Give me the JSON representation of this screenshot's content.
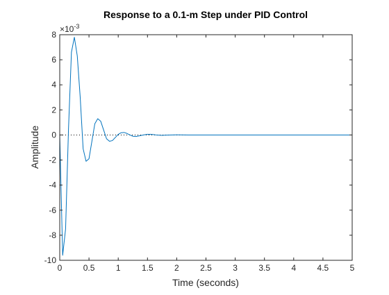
{
  "chart_data": {
    "type": "line",
    "title": "Response to a 0.1-m Step under PID Control",
    "xlabel": "Time (seconds)",
    "ylabel": "Amplitude",
    "y_multiplier_label": "×10",
    "y_multiplier_exponent": "-3",
    "xlim": [
      0,
      5
    ],
    "ylim": [
      -10,
      8
    ],
    "x_ticks": [
      0,
      0.5,
      1,
      1.5,
      2,
      2.5,
      3,
      3.5,
      4,
      4.5,
      5
    ],
    "x_tick_labels": [
      "0",
      "0.5",
      "1",
      "1.5",
      "2",
      "2.5",
      "3",
      "3.5",
      "4",
      "4.5",
      "5"
    ],
    "y_ticks": [
      -10,
      -8,
      -6,
      -4,
      -2,
      0,
      2,
      4,
      6,
      8
    ],
    "y_tick_labels": [
      "-10",
      "-8",
      "-6",
      "-4",
      "-2",
      "0",
      "2",
      "4",
      "6",
      "8"
    ],
    "grid": false,
    "reference_line": {
      "y": 0,
      "style": "dotted",
      "color": "#000000"
    },
    "series": [
      {
        "color": "#0072BD",
        "x": [
          0,
          0.05,
          0.1,
          0.15,
          0.2,
          0.25,
          0.3,
          0.35,
          0.4,
          0.45,
          0.5,
          0.55,
          0.6,
          0.65,
          0.7,
          0.75,
          0.8,
          0.85,
          0.9,
          0.95,
          1.0,
          1.05,
          1.1,
          1.15,
          1.2,
          1.25,
          1.3,
          1.35,
          1.4,
          1.45,
          1.5,
          1.55,
          1.6,
          1.65,
          1.7,
          1.75,
          1.8,
          1.85,
          1.9,
          2.0,
          2.2,
          2.5,
          3.0,
          3.5,
          4.0,
          4.5,
          5.0
        ],
        "y": [
          0,
          -9.6,
          -7.5,
          0.5,
          6.6,
          7.8,
          6.3,
          3.0,
          -1.1,
          -2.1,
          -1.9,
          -0.5,
          0.9,
          1.3,
          1.1,
          0.4,
          -0.3,
          -0.5,
          -0.45,
          -0.2,
          0.05,
          0.18,
          0.2,
          0.12,
          0.0,
          -0.1,
          -0.12,
          -0.08,
          -0.03,
          0.02,
          0.05,
          0.05,
          0.03,
          0.0,
          -0.02,
          -0.03,
          -0.02,
          -0.01,
          0.0,
          0.01,
          0.0,
          0.0,
          0.0,
          0.0,
          0.0,
          0.0,
          0.0
        ]
      }
    ]
  }
}
